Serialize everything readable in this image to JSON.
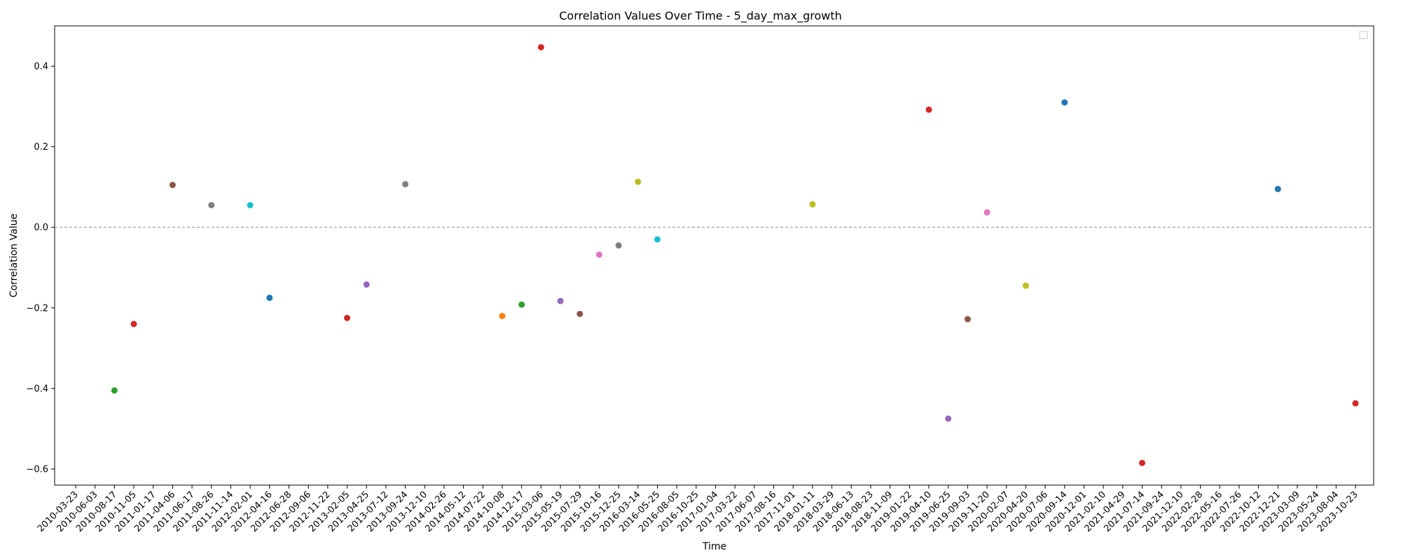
{
  "chart_data": {
    "type": "scatter",
    "title": "Correlation Values Over Time - 5_day_max_growth",
    "xlabel": "Time",
    "ylabel": "Correlation Value",
    "ylim": [
      -0.64,
      0.5
    ],
    "yticks": [
      -0.6,
      -0.4,
      -0.2,
      0.0,
      0.2,
      0.4
    ],
    "ytick_labels": [
      "−0.6",
      "−0.4",
      "−0.2",
      "0.0",
      "0.2",
      "0.4"
    ],
    "reference_line": {
      "y": 0.0,
      "style": "dashed",
      "color": "#888888"
    },
    "legend": {
      "placement": "top-right",
      "entries": []
    },
    "grid": false,
    "x_categories": [
      "2010-03-23",
      "2010-06-03",
      "2010-08-17",
      "2010-11-05",
      "2011-01-17",
      "2011-04-06",
      "2011-06-17",
      "2011-08-26",
      "2011-11-14",
      "2012-02-01",
      "2012-04-16",
      "2012-06-28",
      "2012-09-06",
      "2012-11-22",
      "2013-02-05",
      "2013-04-25",
      "2013-07-12",
      "2013-09-24",
      "2013-12-10",
      "2014-02-26",
      "2014-05-12",
      "2014-07-22",
      "2014-10-08",
      "2014-12-17",
      "2015-03-06",
      "2015-05-19",
      "2015-07-29",
      "2015-10-16",
      "2015-12-25",
      "2016-03-14",
      "2016-05-25",
      "2016-08-05",
      "2016-10-25",
      "2017-01-04",
      "2017-03-22",
      "2017-06-07",
      "2017-08-16",
      "2017-11-01",
      "2018-01-11",
      "2018-03-29",
      "2018-06-13",
      "2018-08-23",
      "2018-11-09",
      "2019-01-22",
      "2019-04-10",
      "2019-06-25",
      "2019-09-03",
      "2019-11-20",
      "2020-02-07",
      "2020-04-20",
      "2020-07-06",
      "2020-09-14",
      "2020-12-01",
      "2021-02-10",
      "2021-04-29",
      "2021-07-14",
      "2021-09-24",
      "2021-12-10",
      "2022-02-28",
      "2022-05-16",
      "2022-07-26",
      "2022-10-12",
      "2022-12-21",
      "2023-03-09",
      "2023-05-24",
      "2023-08-04",
      "2023-10-23"
    ],
    "points": [
      {
        "x": "2010-08-17",
        "y": -0.405,
        "color": "#2ca02c"
      },
      {
        "x": "2010-11-05",
        "y": -0.24,
        "color": "#d62728"
      },
      {
        "x": "2011-04-06",
        "y": 0.105,
        "color": "#8c564b"
      },
      {
        "x": "2011-08-26",
        "y": 0.055,
        "color": "#7f7f7f"
      },
      {
        "x": "2012-02-01",
        "y": 0.055,
        "color": "#17becf"
      },
      {
        "x": "2012-04-16",
        "y": -0.175,
        "color": "#1f77b4"
      },
      {
        "x": "2013-02-05",
        "y": -0.225,
        "color": "#d62728"
      },
      {
        "x": "2013-04-25",
        "y": -0.142,
        "color": "#9467bd"
      },
      {
        "x": "2013-09-24",
        "y": 0.107,
        "color": "#7f7f7f"
      },
      {
        "x": "2014-10-08",
        "y": -0.22,
        "color": "#ff7f0e"
      },
      {
        "x": "2014-12-17",
        "y": -0.192,
        "color": "#2ca02c"
      },
      {
        "x": "2015-03-06",
        "y": 0.447,
        "color": "#d62728"
      },
      {
        "x": "2015-05-19",
        "y": -0.183,
        "color": "#9467bd"
      },
      {
        "x": "2015-07-29",
        "y": -0.215,
        "color": "#8c564b"
      },
      {
        "x": "2015-10-16",
        "y": -0.068,
        "color": "#e377c2"
      },
      {
        "x": "2015-12-25",
        "y": -0.045,
        "color": "#7f7f7f"
      },
      {
        "x": "2016-03-14",
        "y": 0.113,
        "color": "#bcbd22"
      },
      {
        "x": "2016-05-25",
        "y": -0.03,
        "color": "#17becf"
      },
      {
        "x": "2018-01-11",
        "y": 0.057,
        "color": "#bcbd22"
      },
      {
        "x": "2019-04-10",
        "y": 0.292,
        "color": "#d62728"
      },
      {
        "x": "2019-06-25",
        "y": -0.475,
        "color": "#9467bd"
      },
      {
        "x": "2019-09-03",
        "y": -0.228,
        "color": "#8c564b"
      },
      {
        "x": "2019-11-20",
        "y": 0.037,
        "color": "#e377c2"
      },
      {
        "x": "2020-04-20",
        "y": -0.145,
        "color": "#bcbd22"
      },
      {
        "x": "2020-09-14",
        "y": 0.31,
        "color": "#1f77b4"
      },
      {
        "x": "2021-07-14",
        "y": -0.585,
        "color": "#d62728"
      },
      {
        "x": "2022-12-21",
        "y": 0.095,
        "color": "#1f77b4"
      },
      {
        "x": "2023-10-23",
        "y": -0.437,
        "color": "#d62728"
      }
    ]
  }
}
